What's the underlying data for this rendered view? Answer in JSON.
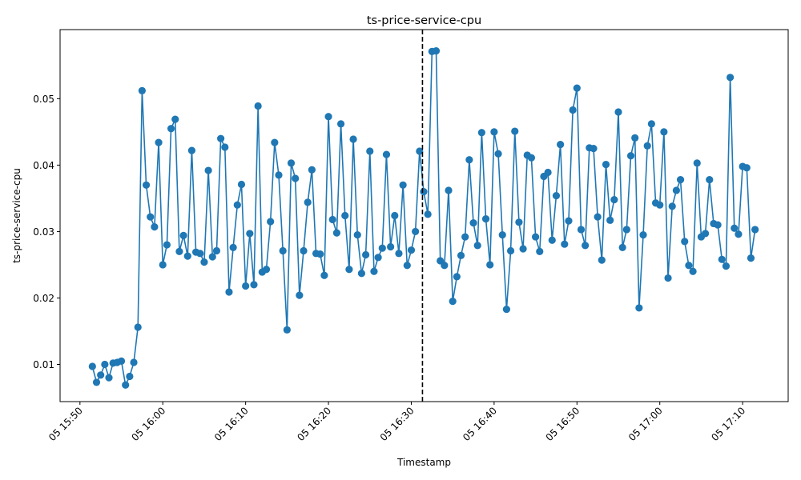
{
  "chart_data": {
    "type": "line",
    "title": "ts-price-service-cpu",
    "xlabel": "Timestamp",
    "ylabel": "ts-price-service-cpu",
    "x_tick_labels": [
      "05 15:50",
      "05 16:00",
      "05 16:10",
      "05 16:20",
      "05 16:30",
      "05 16:40",
      "05 16:50",
      "05 17:00",
      "05 17:10"
    ],
    "x_tick_minutes": [
      0,
      10,
      20,
      30,
      40,
      50,
      60,
      70,
      80
    ],
    "xlim_minutes": [
      -2.4,
      85.5
    ],
    "y_ticks": [
      0.01,
      0.02,
      0.03,
      0.04,
      0.05
    ],
    "y_tick_labels": [
      "0.01",
      "0.02",
      "0.03",
      "0.04",
      "0.05"
    ],
    "ylim": [
      0.0044,
      0.0604
    ],
    "grid": false,
    "vline": {
      "x_minutes": 41.35,
      "style": "dashed",
      "color": "#000000"
    },
    "series": [
      {
        "color": "#1f77b4",
        "x_minutes_start": 1.5,
        "x_minutes_step": 0.5,
        "values": [
          0.0097,
          0.0073,
          0.0084,
          0.01,
          0.008,
          0.0102,
          0.0103,
          0.0105,
          0.0069,
          0.0082,
          0.0103,
          0.0156,
          0.0512,
          0.037,
          0.0322,
          0.0307,
          0.0434,
          0.025,
          0.028,
          0.0455,
          0.0469,
          0.027,
          0.0294,
          0.0263,
          0.0422,
          0.0269,
          0.0267,
          0.0254,
          0.0392,
          0.0262,
          0.0271,
          0.044,
          0.0427,
          0.0209,
          0.0276,
          0.034,
          0.0371,
          0.0218,
          0.0297,
          0.022,
          0.0489,
          0.0239,
          0.0243,
          0.0315,
          0.0434,
          0.0385,
          0.0271,
          0.0152,
          0.0403,
          0.038,
          0.0204,
          0.0271,
          0.0344,
          0.0393,
          0.0267,
          0.0266,
          0.0234,
          0.0473,
          0.0318,
          0.0298,
          0.0462,
          0.0324,
          0.0243,
          0.0439,
          0.0295,
          0.0237,
          0.0265,
          0.0421,
          0.024,
          0.0261,
          0.0275,
          0.0416,
          0.0277,
          0.0324,
          0.0267,
          0.037,
          0.0249,
          0.0272,
          0.03,
          0.0421,
          0.036,
          0.0326,
          0.0571,
          0.0572,
          0.0256,
          0.0249,
          0.0362,
          0.0195,
          0.0232,
          0.0264,
          0.0292,
          0.0408,
          0.0313,
          0.0279,
          0.0449,
          0.0319,
          0.025,
          0.045,
          0.0417,
          0.0295,
          0.0183,
          0.0271,
          0.0451,
          0.0314,
          0.0274,
          0.0415,
          0.0411,
          0.0292,
          0.027,
          0.0383,
          0.0389,
          0.0287,
          0.0354,
          0.0431,
          0.0281,
          0.0316,
          0.0483,
          0.0516,
          0.0303,
          0.0279,
          0.0426,
          0.0425,
          0.0322,
          0.0257,
          0.0401,
          0.0317,
          0.0348,
          0.048,
          0.0276,
          0.0303,
          0.0414,
          0.0441,
          0.0185,
          0.0295,
          0.0429,
          0.0462,
          0.0343,
          0.034,
          0.045,
          0.023,
          0.0338,
          0.0362,
          0.0378,
          0.0285,
          0.0249,
          0.024,
          0.0403,
          0.0292,
          0.0297,
          0.0378,
          0.0312,
          0.031,
          0.0258,
          0.0248,
          0.0532,
          0.0305,
          0.0296,
          0.0398,
          0.0396,
          0.026,
          0.0303
        ]
      }
    ]
  }
}
